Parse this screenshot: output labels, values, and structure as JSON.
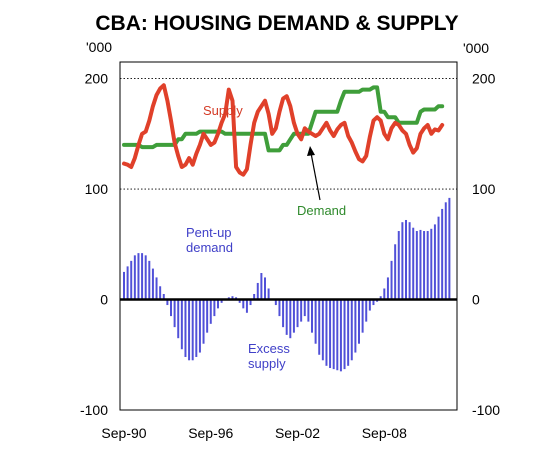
{
  "chart_data": {
    "type": "bar+line",
    "title": "CBA: HOUSING DEMAND & SUPPLY",
    "unit_left": "'000",
    "unit_right": "'000",
    "ylim": [
      -100,
      215
    ],
    "yticks": [
      -100,
      0,
      100,
      200
    ],
    "xticks": [
      "Sep-90",
      "Sep-96",
      "Sep-02",
      "Sep-08"
    ],
    "x_range": [
      "Sep-90",
      "Jun-13"
    ],
    "grid": "horizontal",
    "colors": {
      "supply": "#e0402a",
      "demand": "#3f9e3a",
      "bars": "#5050d8",
      "zero": "#000000"
    },
    "annotations": {
      "supply": "Supply",
      "demand": "Demand",
      "pentup_1": "Pent-up",
      "pentup_2": "demand",
      "excess_1": "Excess",
      "excess_2": "supply"
    },
    "series": [
      {
        "name": "Supply",
        "type": "line",
        "x_start": "Sep-90",
        "step_quarters": 1,
        "values": [
          123,
          122,
          120,
          128,
          140,
          150,
          152,
          162,
          175,
          185,
          191,
          194,
          180,
          162,
          142,
          130,
          120,
          122,
          128,
          122,
          132,
          140,
          150,
          145,
          140,
          142,
          150,
          160,
          168,
          190,
          180,
          120,
          115,
          113,
          118,
          140,
          160,
          170,
          175,
          180,
          168,
          150,
          155,
          170,
          182,
          184,
          175,
          160,
          150,
          145,
          155,
          152,
          150,
          148,
          150,
          155,
          160,
          153,
          148,
          154,
          158,
          160,
          148,
          142,
          134,
          127,
          125,
          130,
          147,
          162,
          165,
          162,
          150,
          145,
          155,
          160,
          158,
          153,
          150,
          140,
          133,
          137,
          150,
          155,
          158,
          150,
          154,
          153,
          158
        ]
      },
      {
        "name": "Demand",
        "type": "line",
        "x_start": "Sep-90",
        "step_quarters": 1,
        "values": [
          140,
          140,
          140,
          140,
          140,
          138,
          138,
          138,
          138,
          140,
          140,
          140,
          140,
          140,
          140,
          145,
          145,
          150,
          150,
          150,
          150,
          152,
          152,
          152,
          152,
          152,
          152,
          152,
          150,
          150,
          150,
          150,
          150,
          150,
          150,
          150,
          150,
          150,
          150,
          150,
          135,
          135,
          135,
          135,
          140,
          140,
          145,
          150,
          150,
          150,
          150,
          150,
          160,
          170,
          170,
          170,
          170,
          170,
          170,
          170,
          180,
          188,
          188,
          188,
          188,
          188,
          190,
          190,
          190,
          192,
          192,
          170,
          170,
          165,
          165,
          165,
          160,
          160,
          160,
          160,
          160,
          160,
          170,
          172,
          172,
          172,
          172,
          175,
          175
        ]
      },
      {
        "name": "Pent-up demand / Excess supply",
        "type": "bar",
        "x_start": "Sep-90",
        "step_quarters": 1,
        "values": [
          25,
          30,
          35,
          40,
          42,
          42,
          40,
          35,
          28,
          20,
          12,
          5,
          -5,
          -15,
          -25,
          -35,
          -45,
          -52,
          -55,
          -55,
          -52,
          -48,
          -40,
          -30,
          -22,
          -15,
          -8,
          -3,
          0,
          2,
          3,
          2,
          -3,
          -8,
          -12,
          -5,
          5,
          15,
          24,
          20,
          10,
          0,
          -5,
          -15,
          -25,
          -32,
          -35,
          -30,
          -25,
          -20,
          -15,
          -20,
          -30,
          -40,
          -50,
          -55,
          -60,
          -62,
          -63,
          -64,
          -65,
          -63,
          -60,
          -55,
          -48,
          -40,
          -30,
          -20,
          -10,
          -5,
          -2,
          3,
          10,
          20,
          35,
          50,
          62,
          70,
          72,
          70,
          65,
          62,
          63,
          62,
          62,
          64,
          68,
          75,
          82,
          88,
          92
        ]
      }
    ]
  }
}
